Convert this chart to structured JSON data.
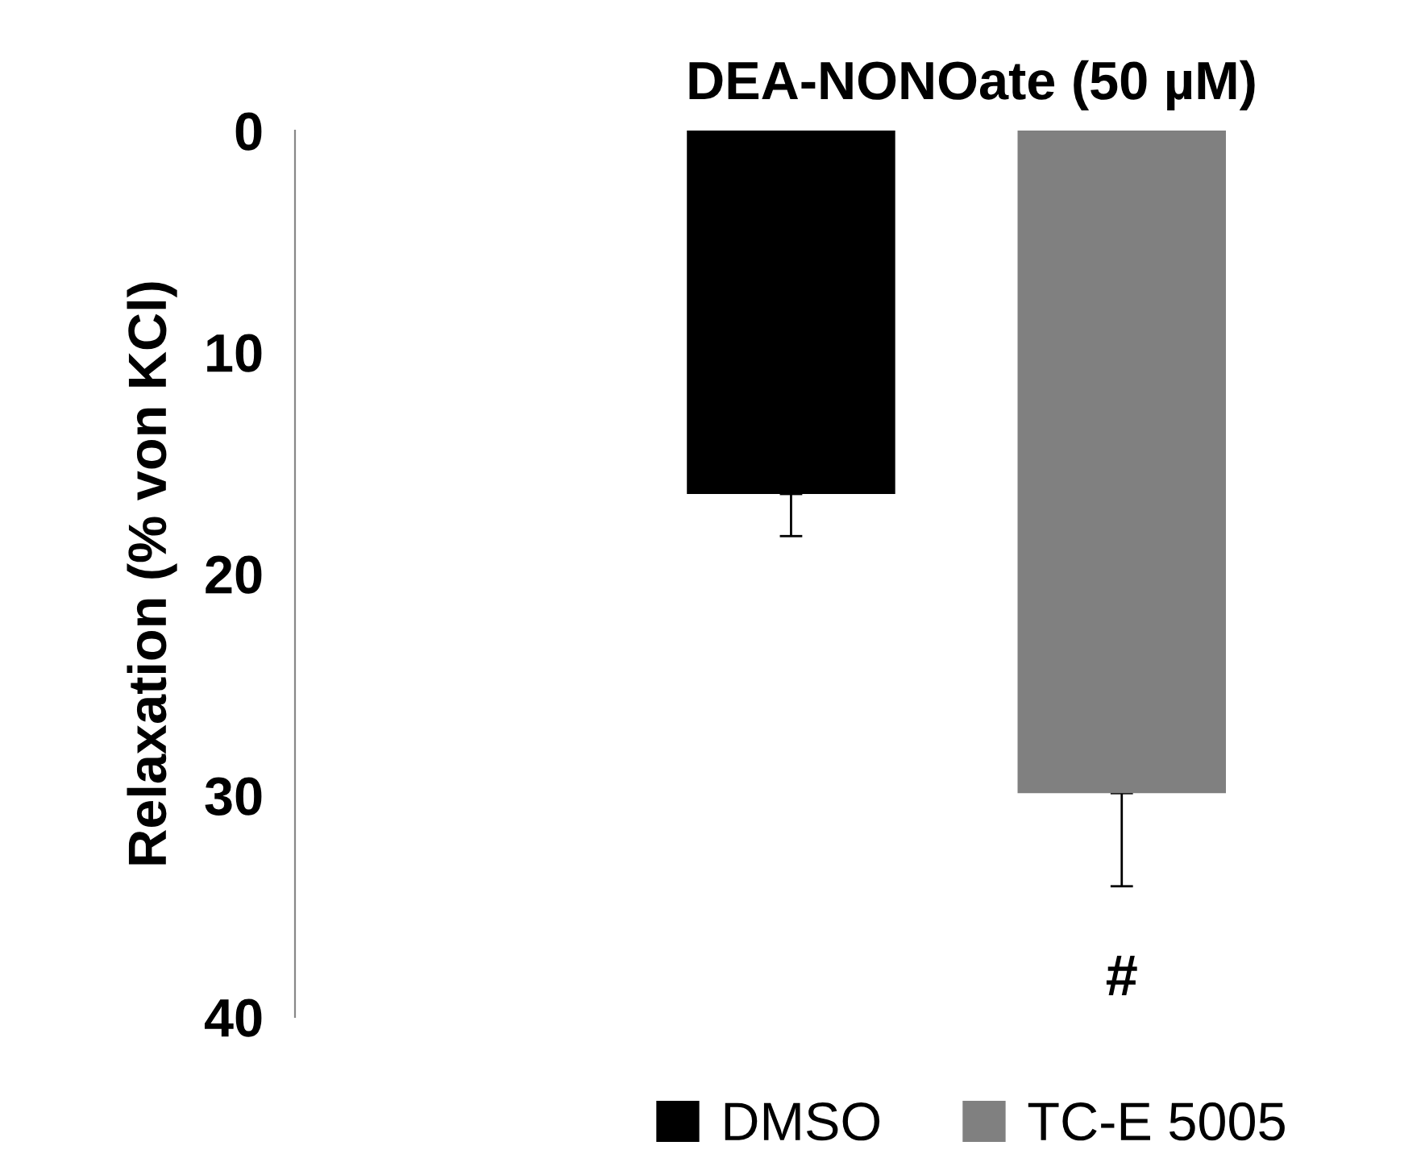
{
  "chart_data": {
    "type": "bar",
    "title": "DEA-NONOate (50 µM)",
    "ylabel": "Relaxation (% von KCl)",
    "categories": [
      null
    ],
    "series": [
      {
        "name": "DMSO",
        "color": "#000000",
        "values": [
          16.4
        ],
        "errors": [
          [
            16.4,
            18.3
          ]
        ]
      },
      {
        "name": "TC-E 5005",
        "color": "#808080",
        "values": [
          29.9
        ],
        "errors": [
          [
            29.9,
            34.1
          ]
        ]
      }
    ],
    "ylim": [
      40,
      0
    ],
    "yticks": [
      0,
      10,
      20,
      30,
      40
    ],
    "grid": false,
    "legend": "bottom",
    "annotations": [
      "#"
    ]
  }
}
